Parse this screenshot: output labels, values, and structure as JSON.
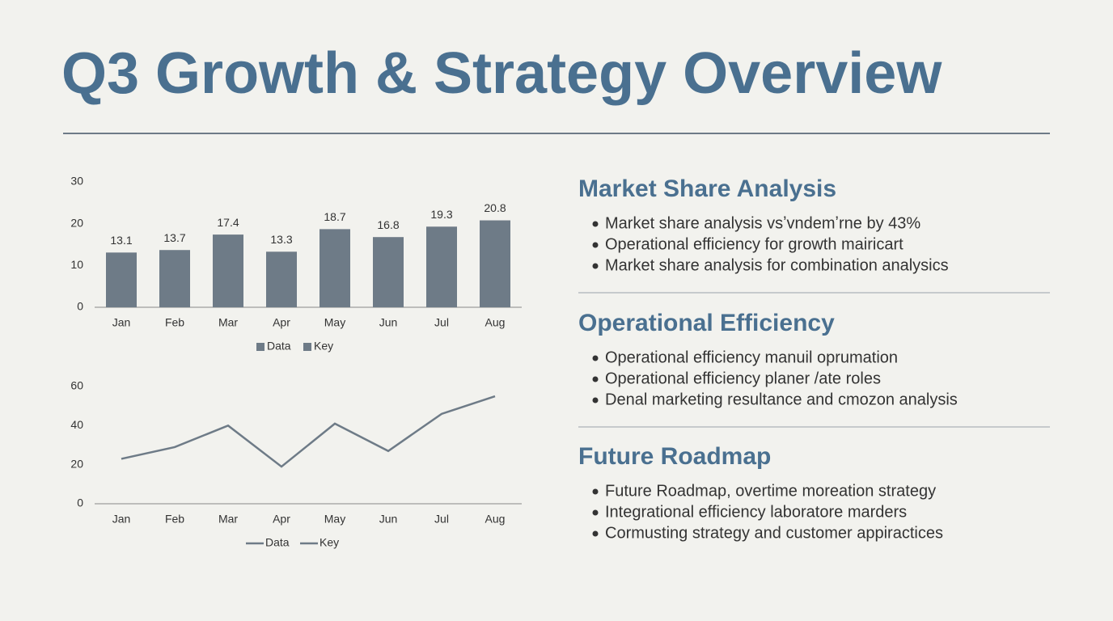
{
  "title": "Q3 Growth & Strategy Overview",
  "chart_data": [
    {
      "type": "bar",
      "categories": [
        "Jan",
        "Feb",
        "Mar",
        "Apr",
        "May",
        "Jun",
        "Jul",
        "Aug"
      ],
      "values": [
        13.1,
        13.7,
        17.4,
        13.3,
        18.7,
        16.8,
        19.3,
        20.8
      ],
      "color": "#6e7b87",
      "ylim": [
        0,
        30
      ],
      "yticks": [
        0,
        10,
        20,
        30
      ],
      "legend": [
        "Data",
        "Key"
      ]
    },
    {
      "type": "line",
      "categories": [
        "Jan",
        "Feb",
        "Mar",
        "Apr",
        "May",
        "Jun",
        "Jul",
        "Aug"
      ],
      "values": [
        23,
        29,
        40,
        19,
        41,
        27,
        46,
        55
      ],
      "color": "#6e7b87",
      "ylim": [
        0,
        60
      ],
      "yticks": [
        0,
        20,
        40,
        60
      ],
      "legend": [
        "Data",
        "Key"
      ]
    }
  ],
  "sections": [
    {
      "heading": "Market Share Analysis",
      "bullets": [
        "Market share analysis vsʼvndemʼrne by 43%",
        "Operational efficiency for growth mairicart",
        "Market share analysis for combination analysics"
      ]
    },
    {
      "heading": "Operational Efficiency",
      "bullets": [
        "Operational efficiency manuil oprumation",
        "Operational efficiency planer /ate roles",
        "Denal marketing resultance and cmozon analysis"
      ]
    },
    {
      "heading": "Future Roadmap",
      "bullets": [
        "Future Roadmap, overtime moreation strategy",
        "Integrational efficiency laboratore marders",
        "Cormusting strategy and customer appiractices"
      ]
    }
  ]
}
